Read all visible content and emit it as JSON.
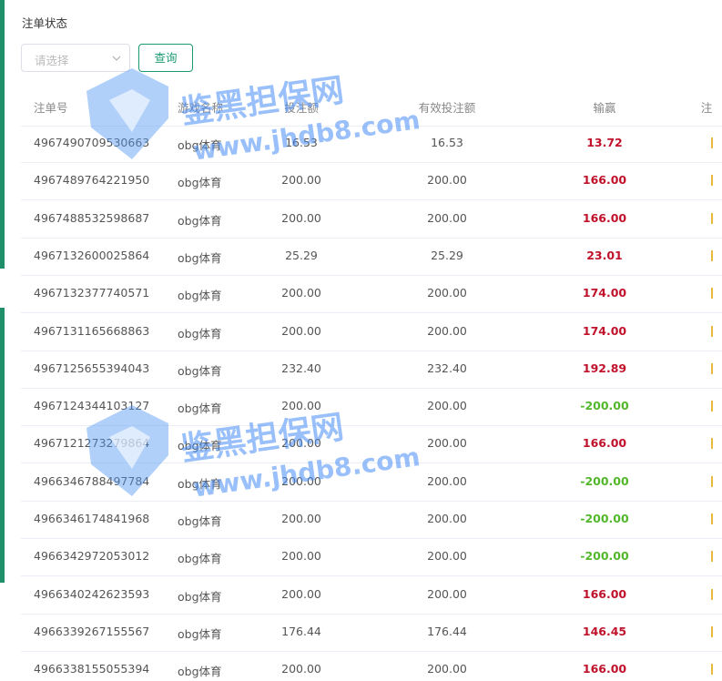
{
  "filter": {
    "label": "注单状态",
    "select_placeholder": "请选择",
    "button": "查询"
  },
  "table": {
    "headers": [
      "注单号",
      "游戏名称",
      "投注额",
      "有效投注额",
      "输赢",
      "注"
    ],
    "rows": [
      [
        "4967490709530663",
        "obg体育",
        "16.53",
        "16.53",
        "13.72"
      ],
      [
        "4967489764221950",
        "obg体育",
        "200.00",
        "200.00",
        "166.00"
      ],
      [
        "4967488532598687",
        "obg体育",
        "200.00",
        "200.00",
        "166.00"
      ],
      [
        "4967132600025864",
        "obg体育",
        "25.29",
        "25.29",
        "23.01"
      ],
      [
        "4967132377740571",
        "obg体育",
        "200.00",
        "200.00",
        "174.00"
      ],
      [
        "4967131165668863",
        "obg体育",
        "200.00",
        "200.00",
        "174.00"
      ],
      [
        "4967125655394043",
        "obg体育",
        "232.40",
        "232.40",
        "192.89"
      ],
      [
        "4967124344103127",
        "obg体育",
        "200.00",
        "200.00",
        "-200.00"
      ],
      [
        "4967121273279864",
        "obg体育",
        "200.00",
        "200.00",
        "166.00"
      ],
      [
        "4966346788497784",
        "obg体育",
        "200.00",
        "200.00",
        "-200.00"
      ],
      [
        "4966346174841968",
        "obg体育",
        "200.00",
        "200.00",
        "-200.00"
      ],
      [
        "4966342972053012",
        "obg体育",
        "200.00",
        "200.00",
        "-200.00"
      ],
      [
        "4966340242623593",
        "obg体育",
        "200.00",
        "200.00",
        "166.00"
      ],
      [
        "4966339267155567",
        "obg体育",
        "176.44",
        "176.44",
        "146.45"
      ],
      [
        "4966338155055394",
        "obg体育",
        "200.00",
        "200.00",
        "166.00"
      ]
    ]
  },
  "watermark": {
    "title": "鉴黑担保网",
    "url": "www.jhdb8.com"
  }
}
